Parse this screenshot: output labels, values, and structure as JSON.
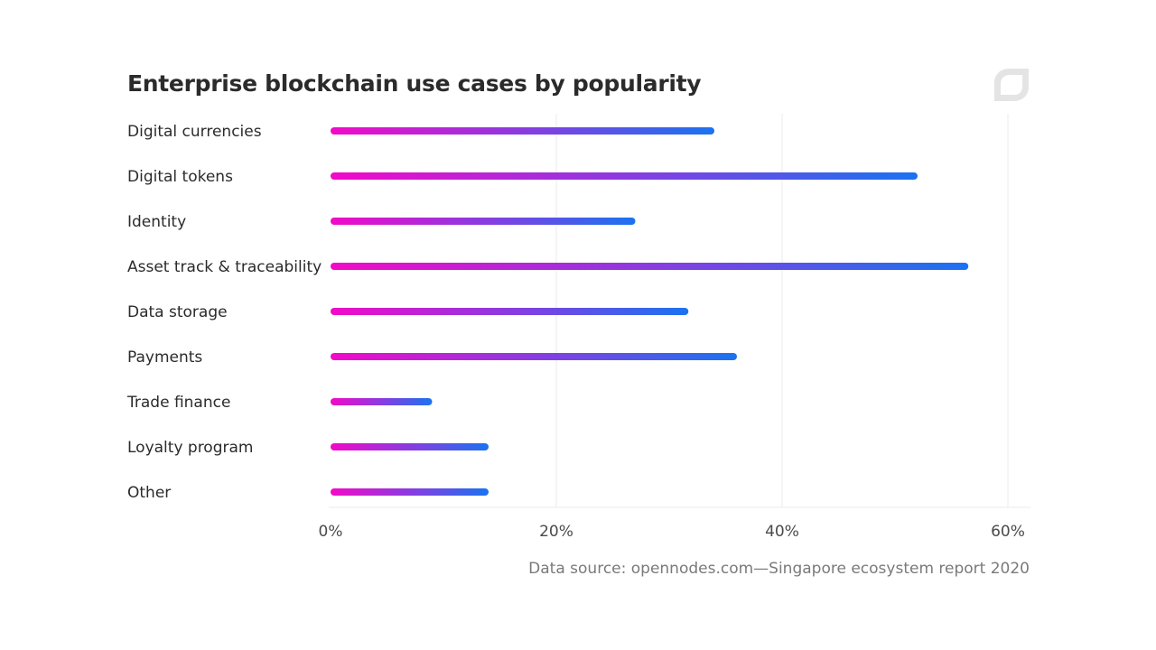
{
  "colors": {
    "bar_gradient_start": "#f20ac8",
    "bar_gradient_mid": "#8a3be0",
    "bar_gradient_end": "#1a73f0",
    "gridline": "#ebebeb",
    "logo": "#e4e4e4"
  },
  "logo_icon": "leaf-logo-icon",
  "footer": {
    "source": "Data source: opennodes.com—Singapore ecosystem report 2020"
  },
  "chart_data": {
    "type": "bar",
    "orientation": "horizontal",
    "title": "Enterprise blockchain use cases by popularity",
    "categories": [
      "Digital currencies",
      "Digital tokens",
      "Identity",
      "Asset track & traceability",
      "Data storage",
      "Payments",
      "Trade finance",
      "Loyalty program",
      "Other"
    ],
    "values": [
      34,
      52,
      27,
      56.5,
      31.7,
      36,
      9,
      14,
      14
    ],
    "unit": "%",
    "xlim": [
      0,
      62
    ],
    "xticks": [
      {
        "value": 0,
        "label": "0%"
      },
      {
        "value": 20,
        "label": "20%"
      },
      {
        "value": 40,
        "label": "40%"
      },
      {
        "value": 60,
        "label": "60%"
      }
    ],
    "grid": "vertical",
    "legend": "none"
  }
}
